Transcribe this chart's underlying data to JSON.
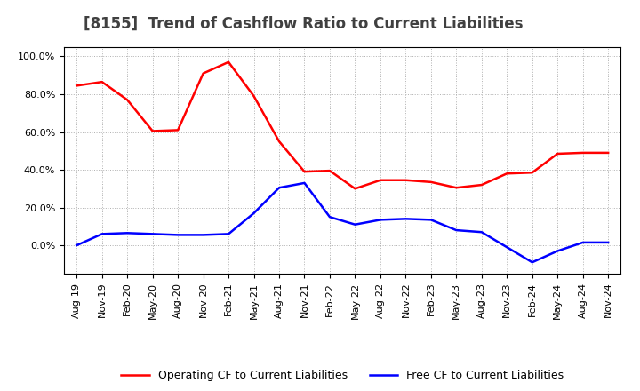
{
  "title": "[8155]  Trend of Cashflow Ratio to Current Liabilities",
  "x_labels": [
    "Aug-19",
    "Nov-19",
    "Feb-20",
    "May-20",
    "Aug-20",
    "Nov-20",
    "Feb-21",
    "May-21",
    "Aug-21",
    "Nov-21",
    "Feb-22",
    "May-22",
    "Aug-22",
    "Nov-22",
    "Feb-23",
    "May-23",
    "Aug-23",
    "Nov-23",
    "Feb-24",
    "May-24",
    "Aug-24",
    "Nov-24"
  ],
  "operating_cf": [
    84.5,
    86.5,
    77.0,
    60.5,
    61.0,
    91.0,
    97.0,
    79.0,
    55.0,
    39.0,
    39.5,
    30.0,
    34.5,
    34.5,
    33.5,
    30.5,
    32.0,
    38.0,
    38.5,
    48.5,
    49.0,
    49.0
  ],
  "free_cf": [
    0.0,
    6.0,
    6.5,
    6.0,
    5.5,
    5.5,
    6.0,
    17.0,
    30.5,
    33.0,
    15.0,
    11.0,
    13.5,
    14.0,
    13.5,
    8.0,
    7.0,
    -1.0,
    -9.0,
    -3.0,
    1.5,
    1.5
  ],
  "operating_cf_color": "#ff0000",
  "free_cf_color": "#0000ff",
  "ylim": [
    -15,
    105
  ],
  "yticks": [
    0,
    20,
    40,
    60,
    80,
    100
  ],
  "ytick_labels": [
    "0.0%",
    "20.0%",
    "40.0%",
    "60.0%",
    "80.0%",
    "100.0%"
  ],
  "legend_operating": "Operating CF to Current Liabilities",
  "legend_free": "Free CF to Current Liabilities",
  "bg_color": "#ffffff",
  "plot_bg_color": "#ffffff",
  "grid_color": "#b0b0b0",
  "title_fontsize": 12,
  "tick_fontsize": 8,
  "legend_fontsize": 9,
  "title_color": "#404040"
}
